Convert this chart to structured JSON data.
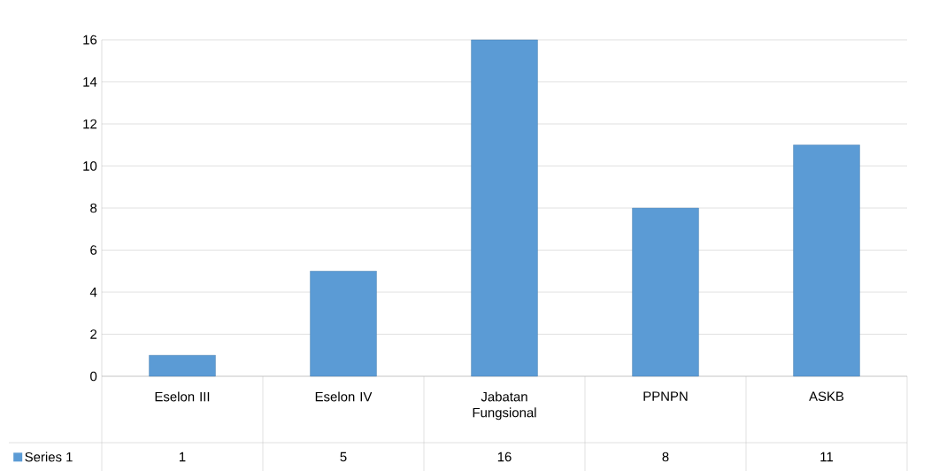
{
  "chart_data": {
    "type": "bar",
    "categories": [
      "Eselon III",
      "Eselon IV",
      "Jabatan Fungsional",
      "PPNPN",
      "ASKB"
    ],
    "series": [
      {
        "name": "Series 1",
        "color": "#5b9bd5",
        "values": [
          1,
          5,
          16,
          8,
          11
        ]
      }
    ],
    "ylim": [
      0,
      16
    ],
    "yticks": [
      0,
      2,
      4,
      6,
      8,
      10,
      12,
      14,
      16
    ],
    "grid": "y",
    "data_labels": true
  }
}
